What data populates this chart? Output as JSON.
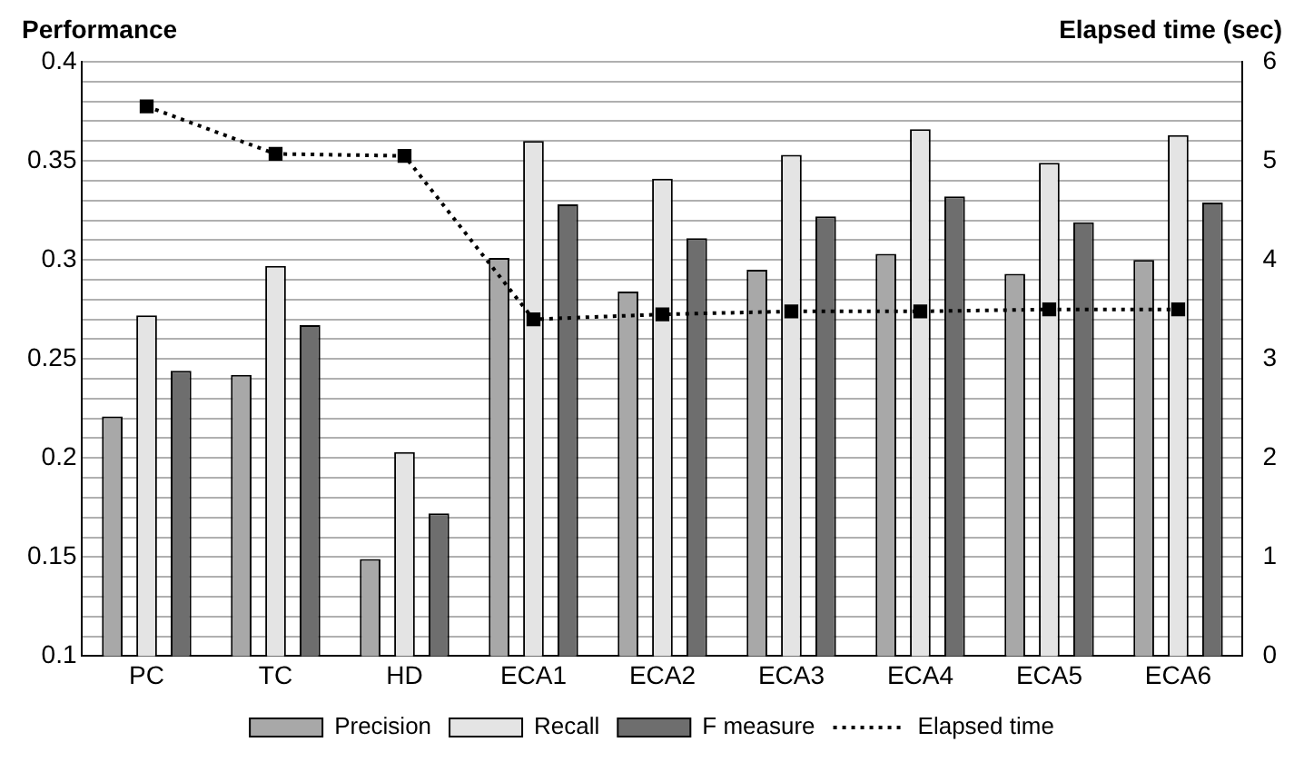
{
  "chart_data": {
    "type": "bar",
    "ylabel": "Performance",
    "y2label": "Elapsed time (sec)",
    "categories": [
      "PC",
      "TC",
      "HD",
      "ECA1",
      "ECA2",
      "ECA3",
      "ECA4",
      "ECA5",
      "ECA6"
    ],
    "series": [
      {
        "name": "Precision",
        "color": "#a8a8a8",
        "values": [
          0.221,
          0.242,
          0.149,
          0.301,
          0.284,
          0.295,
          0.303,
          0.293,
          0.3
        ]
      },
      {
        "name": "Recall",
        "color": "#e4e4e4",
        "values": [
          0.272,
          0.297,
          0.203,
          0.36,
          0.341,
          0.353,
          0.366,
          0.349,
          0.363
        ]
      },
      {
        "name": "F measure",
        "color": "#6e6e6e",
        "values": [
          0.244,
          0.267,
          0.172,
          0.328,
          0.311,
          0.322,
          0.332,
          0.319,
          0.329
        ]
      },
      {
        "name": "Elapsed time",
        "type": "line",
        "axis": "y2",
        "color": "#000000",
        "marker": "square",
        "line_style": "dotted",
        "values": [
          5.55,
          5.07,
          5.05,
          3.4,
          3.45,
          3.48,
          3.48,
          3.5,
          3.5
        ]
      }
    ],
    "ylim": [
      0.1,
      0.4
    ],
    "yticks": [
      0.1,
      {
        "value": 0.11,
        "label": null
      },
      {
        "value": 0.12,
        "label": null
      },
      {
        "value": 0.13,
        "label": null
      },
      {
        "value": 0.14,
        "label": null
      },
      0.15,
      {
        "value": 0.16,
        "label": null
      },
      {
        "value": 0.17,
        "label": null
      },
      {
        "value": 0.18,
        "label": null
      },
      {
        "value": 0.19,
        "label": null
      },
      0.2,
      {
        "value": 0.21,
        "label": null
      },
      {
        "value": 0.22,
        "label": null
      },
      {
        "value": 0.23,
        "label": null
      },
      {
        "value": 0.24,
        "label": null
      },
      0.25,
      {
        "value": 0.26,
        "label": null
      },
      {
        "value": 0.27,
        "label": null
      },
      {
        "value": 0.28,
        "label": null
      },
      {
        "value": 0.29,
        "label": null
      },
      0.3,
      {
        "value": 0.31,
        "label": null
      },
      {
        "value": 0.32,
        "label": null
      },
      {
        "value": 0.33,
        "label": null
      },
      {
        "value": 0.34,
        "label": null
      },
      0.35,
      {
        "value": 0.36,
        "label": null
      },
      {
        "value": 0.37,
        "label": null
      },
      {
        "value": 0.38,
        "label": null
      },
      {
        "value": 0.39,
        "label": null
      },
      0.4
    ],
    "y2lim": [
      0,
      6
    ],
    "y2ticks": [
      0,
      1,
      2,
      3,
      4,
      5,
      6
    ],
    "grid": "y",
    "legend": "bottom"
  }
}
